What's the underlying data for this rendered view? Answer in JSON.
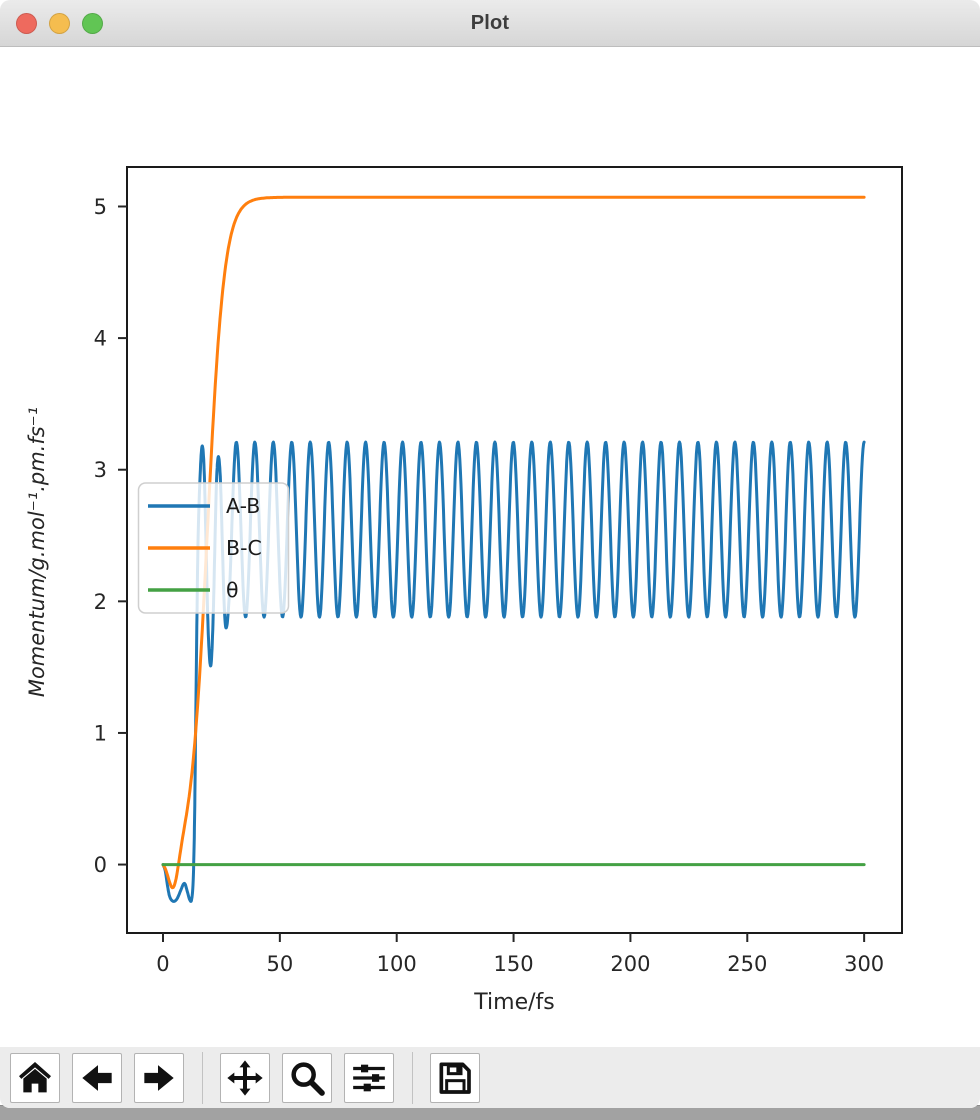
{
  "window": {
    "title": "Plot",
    "traffic_lights": {
      "close": "#ee6a5e",
      "minimize": "#f5bd4f",
      "zoom": "#61c554"
    }
  },
  "toolbar": {
    "background": "#ececec",
    "buttons": [
      {
        "name": "home",
        "icon": "home-icon"
      },
      {
        "name": "back",
        "icon": "arrow-left-icon"
      },
      {
        "name": "forward",
        "icon": "arrow-right-icon"
      },
      {
        "name": "pan",
        "icon": "move-cross-icon"
      },
      {
        "name": "zoom",
        "icon": "magnifier-icon"
      },
      {
        "name": "configure-subplots",
        "icon": "sliders-icon"
      },
      {
        "name": "save",
        "icon": "floppy-disk-icon"
      }
    ]
  },
  "chart_data": {
    "type": "line",
    "title": "",
    "xlabel": "Time/fs",
    "ylabel": "Momentum/g.mol⁻¹.pm.fs⁻¹",
    "xlim": [
      -15.4,
      316.2
    ],
    "ylim": [
      -0.52,
      5.3
    ],
    "xticks": [
      0,
      50,
      100,
      150,
      200,
      250,
      300
    ],
    "yticks": [
      0,
      1,
      2,
      3,
      4,
      5
    ],
    "grid": false,
    "axes_color": "#1a1a1a",
    "tick_color": "#262626",
    "legend": {
      "position": "center-left",
      "entries": [
        {
          "label": "A-B",
          "color": "#1f77b4"
        },
        {
          "label": "B-C",
          "color": "#ff7f0e"
        },
        {
          "label": "θ",
          "color": "#44a144"
        }
      ]
    },
    "series": [
      {
        "name": "A-B",
        "color": "#1f77b4",
        "summary": "starts at 0, dips to about -0.28 for t≈2–12 fs, rises sharply near t≈14 fs, then oscillates steadily between ≈1.88 and ≈3.21 (period ≈7.9 fs) out to t=300 fs",
        "model": {
          "kind": "keypoints_then_cosine",
          "keypoints": [
            [
              0,
              0
            ],
            [
              1,
              -0.05
            ],
            [
              2,
              -0.17
            ],
            [
              3,
              -0.25
            ],
            [
              4.5,
              -0.28
            ],
            [
              6,
              -0.26
            ],
            [
              7.5,
              -0.2
            ],
            [
              8.7,
              -0.15
            ],
            [
              9.5,
              -0.15
            ],
            [
              10.5,
              -0.21
            ],
            [
              11.5,
              -0.27
            ],
            [
              12.3,
              -0.26
            ],
            [
              13,
              -0.08
            ],
            [
              13.6,
              0.45
            ],
            [
              14.2,
              1.4
            ],
            [
              15,
              2.45
            ],
            [
              16,
              3.0
            ],
            [
              16.8,
              3.18
            ],
            [
              17.6,
              3.0
            ],
            [
              18.4,
              2.45
            ],
            [
              19.2,
              1.85
            ],
            [
              20,
              1.55
            ],
            [
              20.7,
              1.55
            ],
            [
              21.5,
              1.9
            ],
            [
              22.3,
              2.5
            ],
            [
              23,
              2.95
            ],
            [
              23.7,
              3.1
            ],
            [
              24.5,
              2.95
            ],
            [
              25.3,
              2.5
            ],
            [
              26,
              2.05
            ],
            [
              26.7,
              1.82
            ],
            [
              27.4,
              1.82
            ],
            [
              28,
              1.94
            ]
          ],
          "cosine": {
            "from": 28,
            "to": 300,
            "baseline": 2.545,
            "amplitude": 0.665,
            "period": 7.9,
            "peak_at": 300
          }
        }
      },
      {
        "name": "B-C",
        "color": "#ff7f0e",
        "summary": "starts at 0, small dip to ≈-0.17 near t≈4.5 fs, then sigmoidal rise centered at t≈19 fs saturating at ≈5.07 for t≳35 fs",
        "model": {
          "kind": "sigmoid_with_initial_dip",
          "from": 0,
          "to": 300,
          "plateau": 5.07,
          "center": 19,
          "tau": 3.6,
          "dip_amplitude": -0.26,
          "dip_center": 4.5,
          "dip_width": 3
        }
      },
      {
        "name": "θ",
        "color": "#44a144",
        "summary": "constant 0 from t=0 to t=300 fs",
        "model": {
          "kind": "constant",
          "from": 0,
          "to": 300,
          "value": 0
        }
      }
    ]
  }
}
